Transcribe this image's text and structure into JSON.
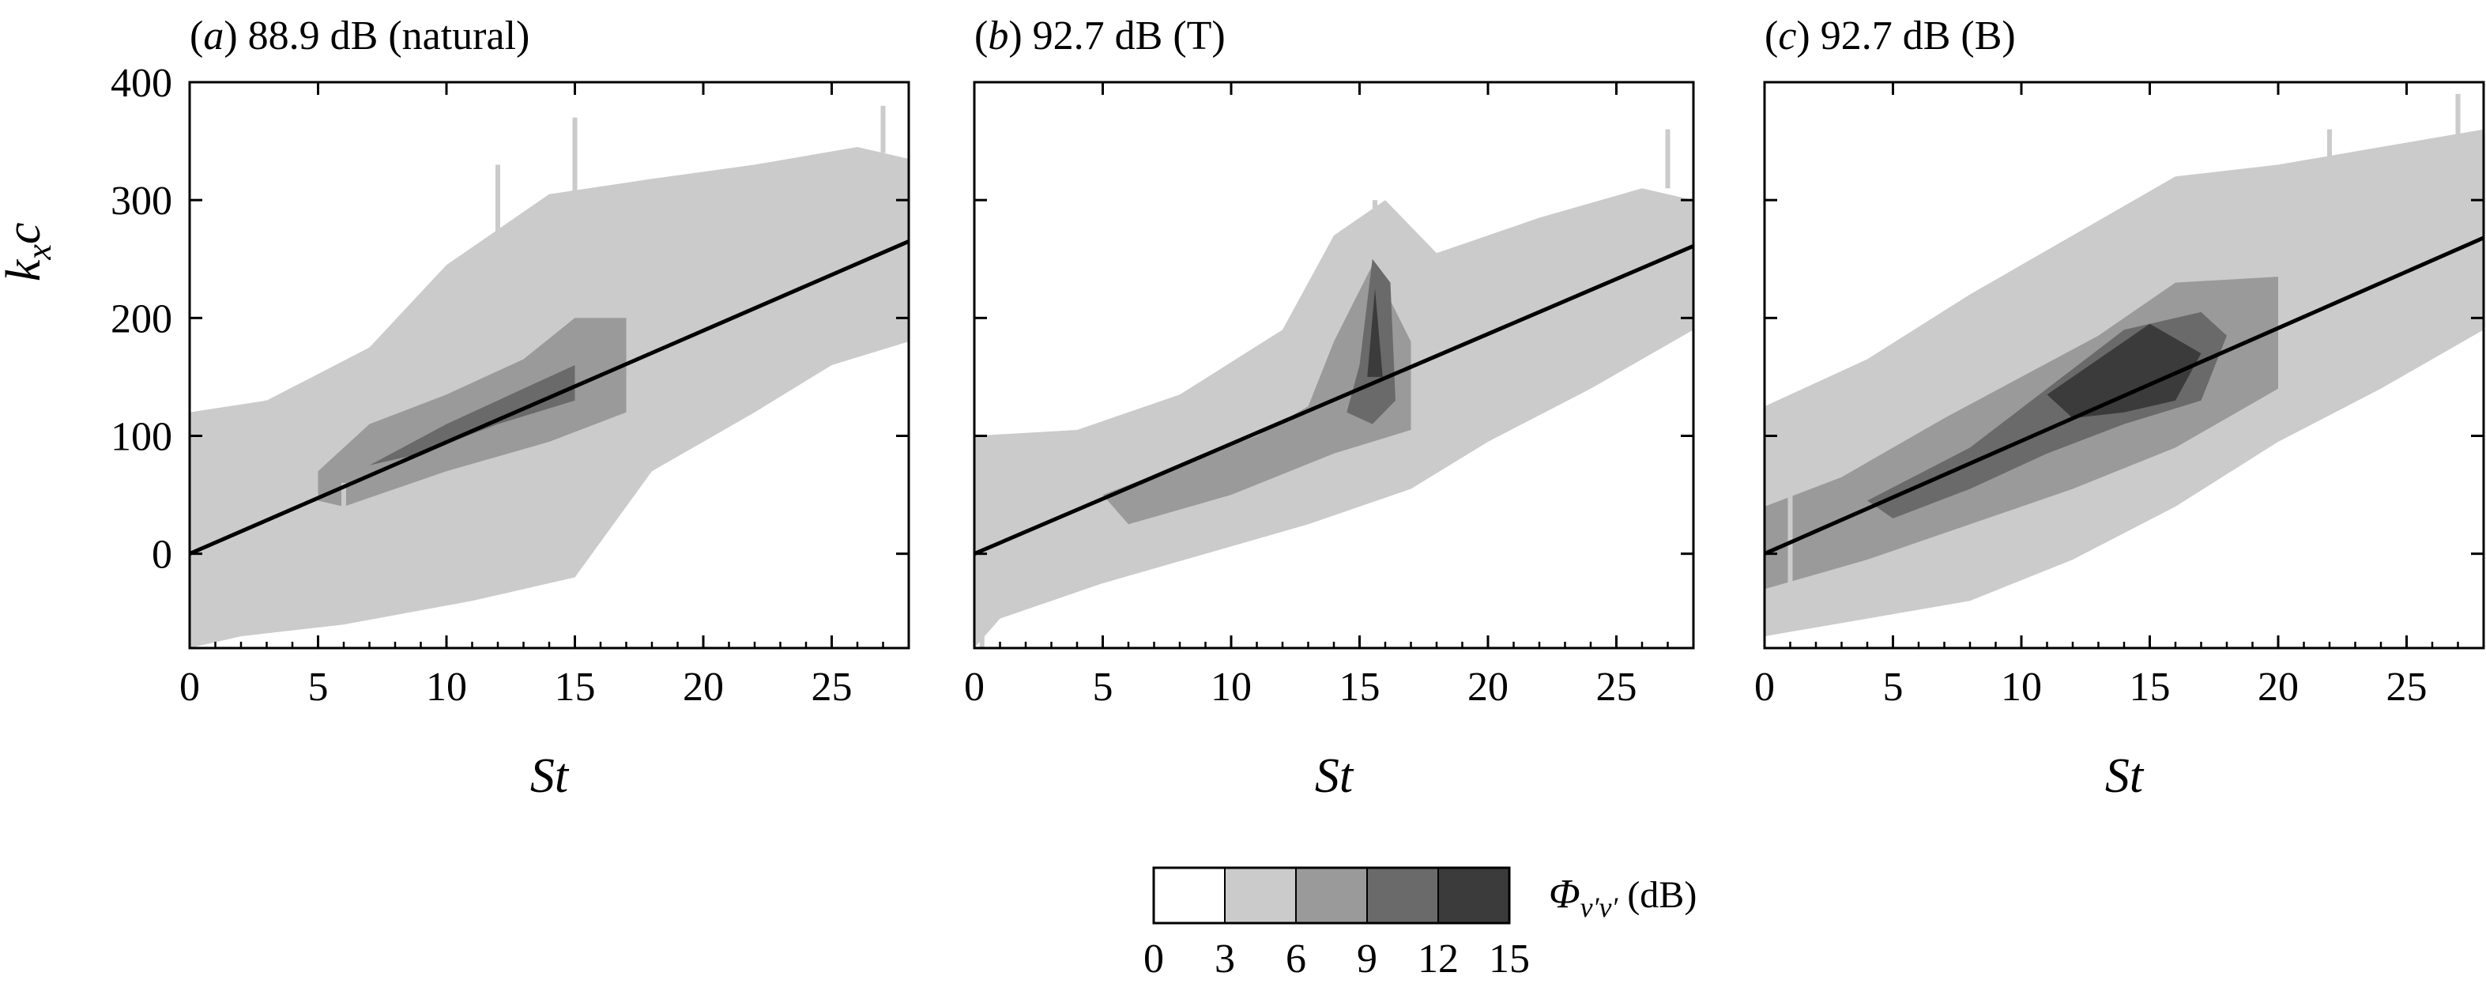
{
  "chart_data": [
    {
      "type": "heatmap",
      "panel_label": "(a)",
      "title": "88.9 dB (natural)",
      "xlabel": "St",
      "ylabel": "k_x c",
      "xlim": [
        0,
        28
      ],
      "ylim": [
        -80,
        400
      ],
      "xticks": [
        0,
        5,
        10,
        15,
        20,
        25
      ],
      "yticks": [
        0,
        100,
        200,
        300,
        400
      ],
      "reference_line": {
        "x": [
          0,
          28
        ],
        "y": [
          0,
          265
        ]
      },
      "regions": [
        {
          "level": 3,
          "polygon": [
            [
              0,
              120
            ],
            [
              3,
              130
            ],
            [
              7,
              175
            ],
            [
              10,
              245
            ],
            [
              14,
              305
            ],
            [
              18,
              318
            ],
            [
              22,
              330
            ],
            [
              26,
              345
            ],
            [
              28,
              335
            ],
            [
              28,
              180
            ],
            [
              25,
              160
            ],
            [
              22,
              120
            ],
            [
              18,
              70
            ],
            [
              15,
              -20
            ],
            [
              11,
              -40
            ],
            [
              6,
              -60
            ],
            [
              2,
              -70
            ],
            [
              0,
              -80
            ]
          ]
        },
        {
          "level": 6,
          "polygon": [
            [
              5,
              70
            ],
            [
              7,
              110
            ],
            [
              10,
              135
            ],
            [
              13,
              165
            ],
            [
              15,
              200
            ],
            [
              17,
              200
            ],
            [
              17,
              120
            ],
            [
              14,
              95
            ],
            [
              10,
              70
            ],
            [
              6,
              40
            ],
            [
              5,
              45
            ]
          ]
        },
        {
          "level": 9,
          "polygon": [
            [
              7,
              75
            ],
            [
              10,
              110
            ],
            [
              13,
              140
            ],
            [
              15,
              160
            ],
            [
              15,
              130
            ],
            [
              12,
              110
            ],
            [
              9,
              85
            ]
          ]
        }
      ],
      "streaks": [
        {
          "x": 3,
          "y0": 60,
          "y1": 130
        },
        {
          "x": 6,
          "y0": -20,
          "y1": 60
        },
        {
          "x": 12,
          "y0": 220,
          "y1": 330
        },
        {
          "x": 15,
          "y0": 300,
          "y1": 370
        },
        {
          "x": 27,
          "y0": 340,
          "y1": 380
        }
      ]
    },
    {
      "type": "heatmap",
      "panel_label": "(b)",
      "title": "92.7 dB (T)",
      "xlabel": "St",
      "xlim": [
        0,
        28
      ],
      "ylim": [
        -80,
        400
      ],
      "xticks": [
        0,
        5,
        10,
        15,
        20,
        25
      ],
      "yticks": [
        0,
        100,
        200,
        300,
        400
      ],
      "reference_line": {
        "x": [
          0,
          28
        ],
        "y": [
          0,
          261
        ]
      },
      "regions": [
        {
          "level": 3,
          "polygon": [
            [
              0,
              100
            ],
            [
              4,
              105
            ],
            [
              8,
              135
            ],
            [
              12,
              190
            ],
            [
              14,
              270
            ],
            [
              16,
              300
            ],
            [
              18,
              255
            ],
            [
              22,
              285
            ],
            [
              26,
              310
            ],
            [
              28,
              300
            ],
            [
              28,
              190
            ],
            [
              24,
              140
            ],
            [
              20,
              95
            ],
            [
              17,
              55
            ],
            [
              13,
              25
            ],
            [
              9,
              0
            ],
            [
              5,
              -25
            ],
            [
              1,
              -55
            ],
            [
              0,
              -80
            ]
          ]
        },
        {
          "level": 6,
          "polygon": [
            [
              5,
              50
            ],
            [
              8,
              75
            ],
            [
              11,
              100
            ],
            [
              13,
              125
            ],
            [
              14,
              180
            ],
            [
              15.5,
              245
            ],
            [
              17,
              180
            ],
            [
              17,
              105
            ],
            [
              14,
              85
            ],
            [
              10,
              50
            ],
            [
              6,
              25
            ]
          ]
        },
        {
          "level": 9,
          "polygon": [
            [
              14.5,
              120
            ],
            [
              15,
              160
            ],
            [
              15.5,
              250
            ],
            [
              16.2,
              230
            ],
            [
              16.4,
              130
            ],
            [
              15.5,
              110
            ]
          ]
        },
        {
          "level": 12,
          "polygon": [
            [
              15.3,
              150
            ],
            [
              15.6,
              225
            ],
            [
              15.9,
              150
            ]
          ]
        }
      ],
      "streaks": [
        {
          "x": 0.3,
          "y0": -80,
          "y1": 30
        },
        {
          "x": 15.6,
          "y0": 250,
          "y1": 300
        },
        {
          "x": 27,
          "y0": 310,
          "y1": 360
        }
      ]
    },
    {
      "type": "heatmap",
      "panel_label": "(c)",
      "title": "92.7 dB (B)",
      "xlabel": "St",
      "xlim": [
        0,
        28
      ],
      "ylim": [
        -80,
        400
      ],
      "xticks": [
        0,
        5,
        10,
        15,
        20,
        25
      ],
      "yticks": [
        0,
        100,
        200,
        300,
        400
      ],
      "reference_line": {
        "x": [
          0,
          28
        ],
        "y": [
          0,
          268
        ]
      },
      "regions": [
        {
          "level": 3,
          "polygon": [
            [
              0,
              125
            ],
            [
              4,
              165
            ],
            [
              8,
              220
            ],
            [
              12,
              270
            ],
            [
              16,
              320
            ],
            [
              20,
              330
            ],
            [
              24,
              345
            ],
            [
              28,
              360
            ],
            [
              28,
              190
            ],
            [
              24,
              140
            ],
            [
              20,
              95
            ],
            [
              16,
              40
            ],
            [
              12,
              -5
            ],
            [
              8,
              -40
            ],
            [
              4,
              -55
            ],
            [
              0,
              -70
            ]
          ]
        },
        {
          "level": 6,
          "polygon": [
            [
              0,
              40
            ],
            [
              3,
              65
            ],
            [
              7,
              115
            ],
            [
              10,
              150
            ],
            [
              13,
              185
            ],
            [
              16,
              230
            ],
            [
              20,
              235
            ],
            [
              20,
              140
            ],
            [
              16,
              90
            ],
            [
              12,
              55
            ],
            [
              8,
              25
            ],
            [
              4,
              -5
            ],
            [
              0,
              -30
            ]
          ]
        },
        {
          "level": 9,
          "polygon": [
            [
              4,
              45
            ],
            [
              8,
              90
            ],
            [
              11,
              140
            ],
            [
              14,
              190
            ],
            [
              17,
              205
            ],
            [
              18,
              185
            ],
            [
              17,
              130
            ],
            [
              14,
              110
            ],
            [
              11,
              85
            ],
            [
              8,
              55
            ],
            [
              5,
              30
            ]
          ]
        },
        {
          "level": 12,
          "polygon": [
            [
              11,
              135
            ],
            [
              13,
              165
            ],
            [
              15,
              195
            ],
            [
              17,
              170
            ],
            [
              16,
              130
            ],
            [
              14,
              120
            ],
            [
              12,
              115
            ]
          ]
        }
      ],
      "streaks": [
        {
          "x": 1,
          "y0": -40,
          "y1": 60
        },
        {
          "x": 22,
          "y0": 300,
          "y1": 360
        },
        {
          "x": 27,
          "y0": 330,
          "y1": 390
        }
      ]
    }
  ],
  "colorbar": {
    "label": "Φv′v′ (dB)",
    "label_symbol": "Φ",
    "label_subscript": "v′v′",
    "label_unit": "(dB)",
    "ticks": [
      "0",
      "3",
      "6",
      "9",
      "12",
      "15"
    ],
    "levels": [
      0,
      3,
      6,
      9,
      12,
      15
    ],
    "colors": [
      "#ffffff",
      "#cbcbcb",
      "#9a9a9a",
      "#6a6a6a",
      "#3b3b3b"
    ]
  },
  "colors": {
    "level_3": "#cbcbcb",
    "level_6": "#9a9a9a",
    "level_9": "#6a6a6a",
    "level_12": "#3b3b3b",
    "line": "#000000"
  }
}
